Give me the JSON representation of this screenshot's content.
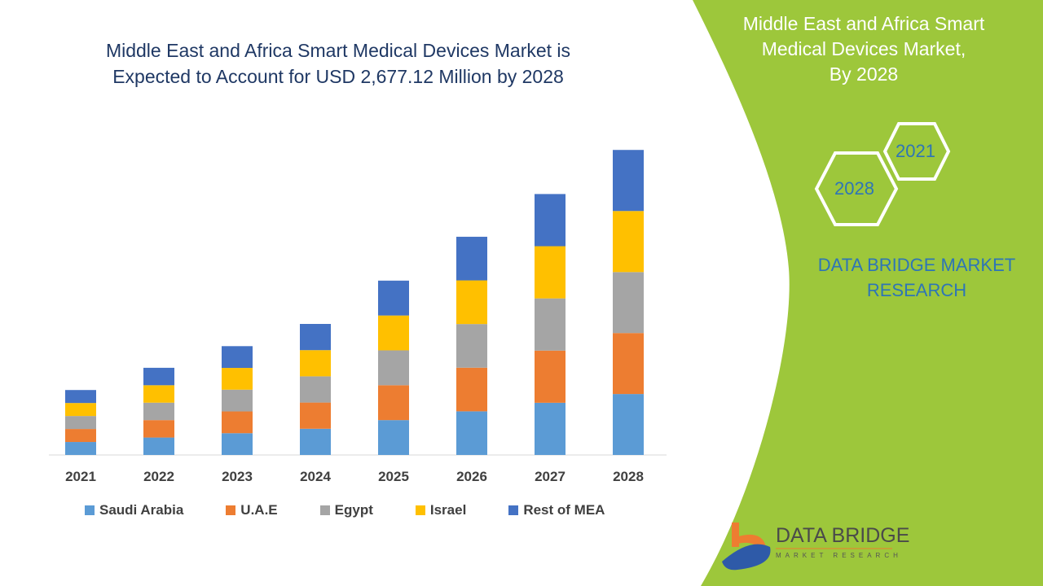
{
  "title": [
    "Middle East and Africa Smart Medical Devices Market is",
    "Expected to Account for USD 2,677.12 Million by 2028"
  ],
  "side_panel": {
    "title": [
      "Middle East and Africa Smart",
      "Medical Devices Market,",
      "By 2028"
    ],
    "hex_years": [
      "2021",
      "2028"
    ],
    "brand": [
      "DATA BRIDGE MARKET",
      "RESEARCH"
    ],
    "logo_title": "DATA BRIDGE",
    "logo_subtitle": "MARKET RESEARCH",
    "color": "#9dc73b"
  },
  "chart_data": {
    "type": "bar",
    "stacked": true,
    "title": "Middle East and Africa Smart Medical Devices Market is Expected to Account for USD 2,677.12 Million by 2028",
    "categories": [
      "2021",
      "2022",
      "2023",
      "2024",
      "2025",
      "2026",
      "2027",
      "2028"
    ],
    "series": [
      {
        "name": "Saudi Arabia",
        "color": "#5b9bd5",
        "values": [
          114,
          153,
          191,
          230,
          306,
          383,
          458,
          535
        ]
      },
      {
        "name": "U.A.E",
        "color": "#ed7d31",
        "values": [
          114,
          153,
          191,
          230,
          306,
          383,
          458,
          535
        ]
      },
      {
        "name": "Egypt",
        "color": "#a5a5a5",
        "values": [
          114,
          153,
          191,
          230,
          306,
          383,
          458,
          535
        ]
      },
      {
        "name": "Israel",
        "color": "#ffc000",
        "values": [
          114,
          153,
          191,
          230,
          306,
          383,
          458,
          536
        ]
      },
      {
        "name": "Rest of MEA",
        "color": "#4472c4",
        "values": [
          114,
          153,
          191,
          230,
          306,
          383,
          458,
          536
        ]
      }
    ],
    "xlabel": "",
    "ylabel": "",
    "ylim": [
      0,
      2800
    ],
    "grid": false,
    "legend": "bottom",
    "y_axis_visible": false
  }
}
